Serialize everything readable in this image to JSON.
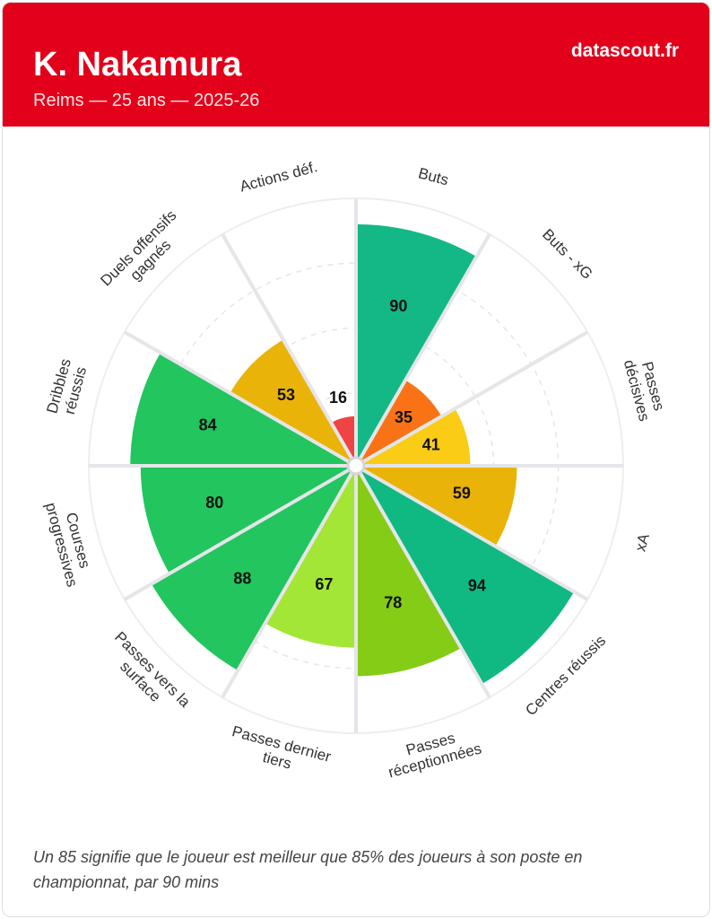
{
  "header": {
    "title": "K. Nakamura",
    "subtitle": "Reims — 25 ans — 2025-26",
    "brand": "datascout.fr"
  },
  "chart_data": {
    "type": "pizza",
    "categories": [
      [
        "Buts"
      ],
      [
        "Buts - xG"
      ],
      [
        "Passes",
        "décisives"
      ],
      [
        "xA"
      ],
      [
        "Centres réussis"
      ],
      [
        "Passes",
        "réceptionnées"
      ],
      [
        "Passes dernier",
        "tiers"
      ],
      [
        "Passes vers la",
        "surface"
      ],
      [
        "Courses",
        "progressives"
      ],
      [
        "Dribbles",
        "réussis"
      ],
      [
        "Duels offensifs",
        "gagnés"
      ],
      [
        "Actions déf."
      ]
    ],
    "values": [
      90,
      35,
      41,
      59,
      94,
      78,
      67,
      88,
      80,
      84,
      53,
      16
    ],
    "colors": [
      "#13b886",
      "#f97316",
      "#facc15",
      "#eab308",
      "#10b981",
      "#84cc16",
      "#a3e635",
      "#22c55e",
      "#22c55e",
      "#22c55e",
      "#eab308",
      "#ef4444"
    ],
    "rlim": [
      0,
      100
    ],
    "rticks": [
      25,
      50,
      75,
      100
    ],
    "grid": true
  },
  "footnote": "Un 85 signifie que le joueur est meilleur que 85% des joueurs à son poste en championnat, par 90 mins"
}
